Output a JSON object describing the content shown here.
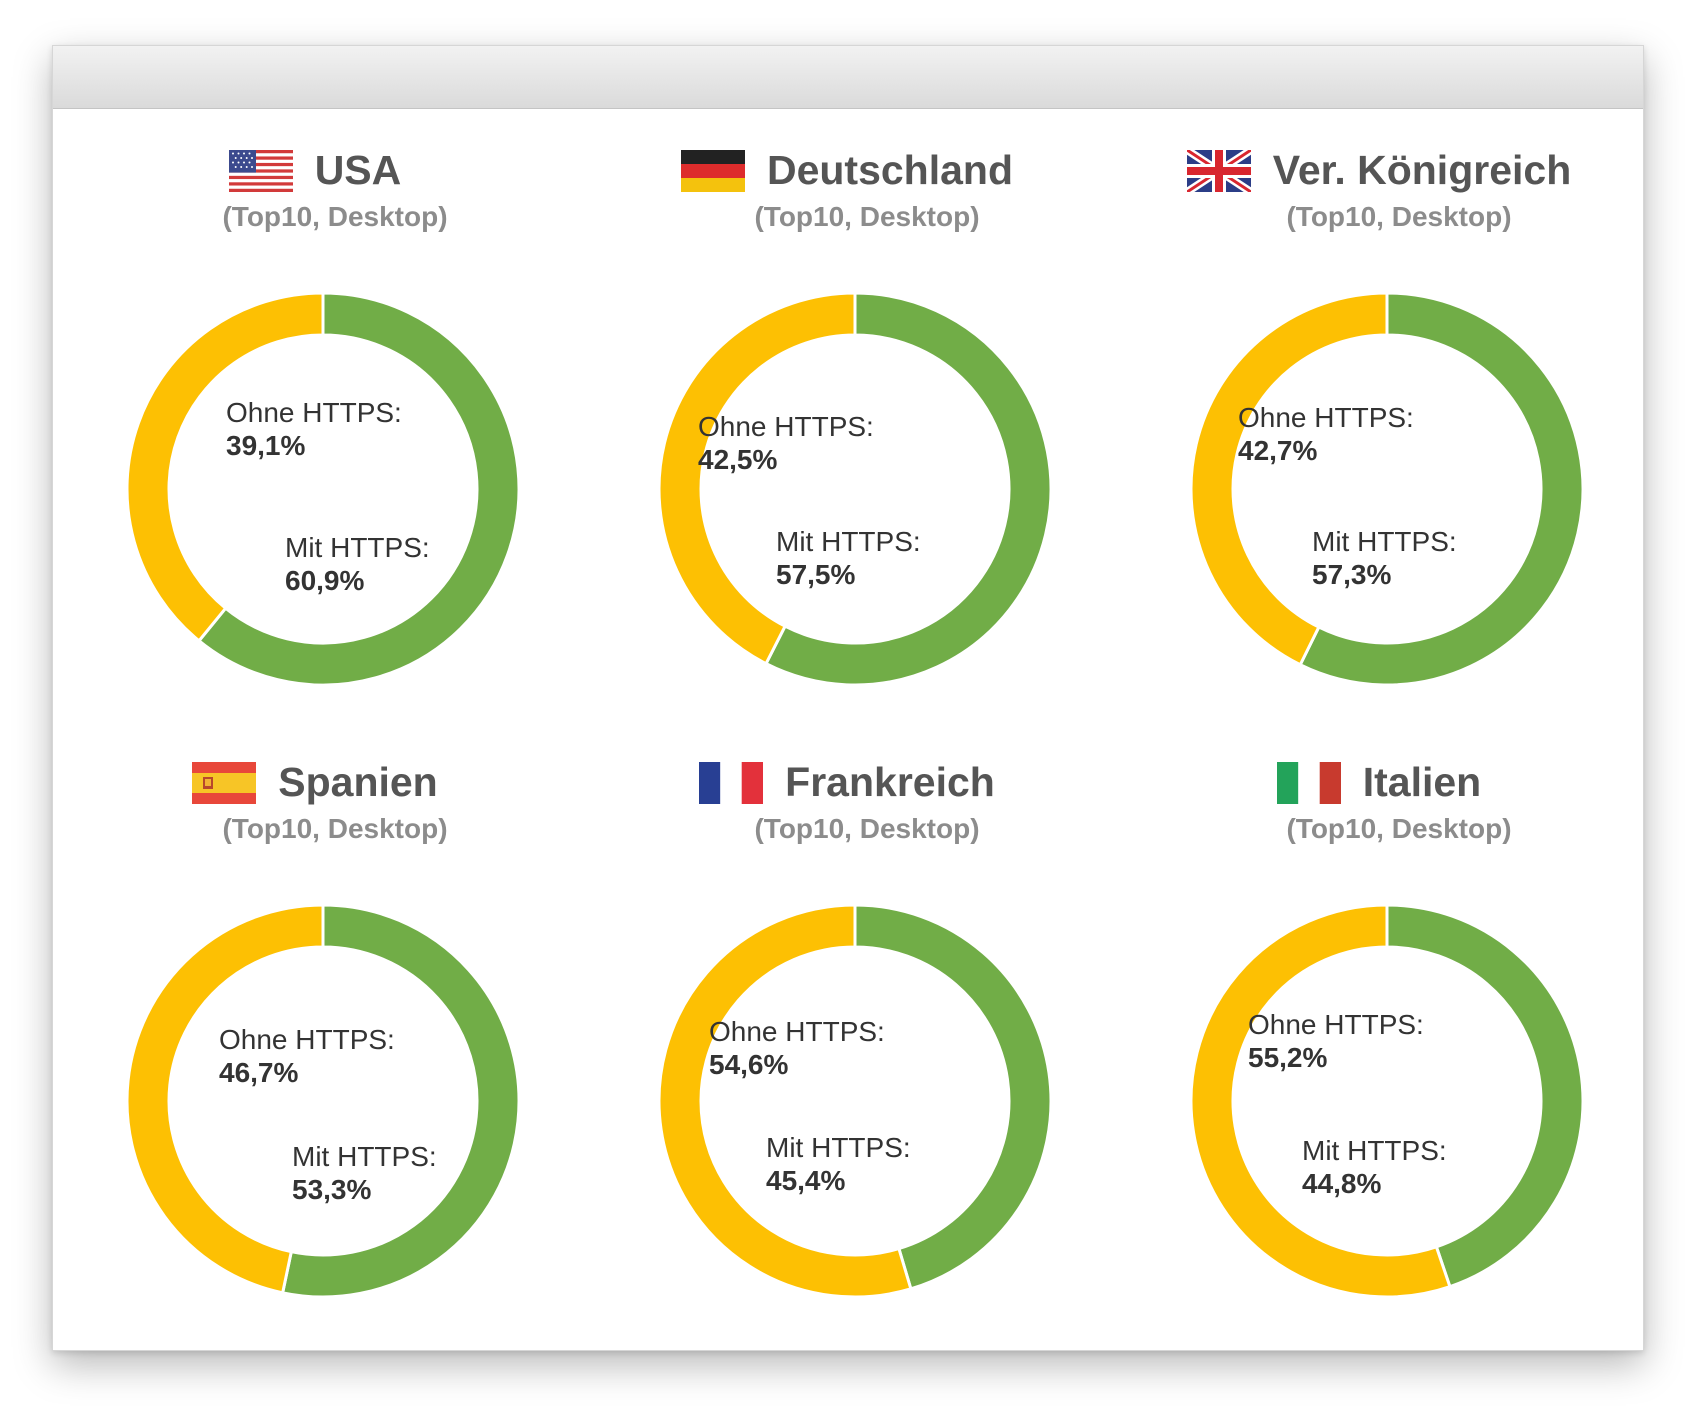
{
  "colors": {
    "mit_https": "#71ad47",
    "ohne_https": "#fdc003",
    "title_text": "#555555",
    "subtitle_text": "#8c8c8c"
  },
  "chart_data": [
    {
      "type": "pie",
      "title": "USA",
      "subtitle": "(Top10, Desktop)",
      "flag_icon": "usa-flag-icon",
      "slices": [
        {
          "label": "Mit HTTPS:",
          "display": "60,9%",
          "value": 60.9
        },
        {
          "label": "Ohne HTTPS:",
          "display": "39,1%",
          "value": 39.1
        }
      ]
    },
    {
      "type": "pie",
      "title": "Deutschland",
      "subtitle": "(Top10, Desktop)",
      "flag_icon": "germany-flag-icon",
      "slices": [
        {
          "label": "Mit HTTPS:",
          "display": "57,5%",
          "value": 57.5
        },
        {
          "label": "Ohne HTTPS:",
          "display": "42,5%",
          "value": 42.5
        }
      ]
    },
    {
      "type": "pie",
      "title": "Ver. Königreich",
      "subtitle": "(Top10, Desktop)",
      "flag_icon": "uk-flag-icon",
      "slices": [
        {
          "label": "Mit HTTPS:",
          "display": "57,3%",
          "value": 57.3
        },
        {
          "label": "Ohne HTTPS:",
          "display": "42,7%",
          "value": 42.7
        }
      ]
    },
    {
      "type": "pie",
      "title": "Spanien",
      "subtitle": "(Top10, Desktop)",
      "flag_icon": "spain-flag-icon",
      "slices": [
        {
          "label": "Mit HTTPS:",
          "display": "53,3%",
          "value": 53.3
        },
        {
          "label": "Ohne HTTPS:",
          "display": "46,7%",
          "value": 46.7
        }
      ]
    },
    {
      "type": "pie",
      "title": "Frankreich",
      "subtitle": "(Top10, Desktop)",
      "flag_icon": "france-flag-icon",
      "slices": [
        {
          "label": "Mit HTTPS:",
          "display": "45,4%",
          "value": 45.4
        },
        {
          "label": "Ohne HTTPS:",
          "display": "54,6%",
          "value": 54.6
        }
      ]
    },
    {
      "type": "pie",
      "title": "Italien",
      "subtitle": "(Top10, Desktop)",
      "flag_icon": "italy-flag-icon",
      "slices": [
        {
          "label": "Mit HTTPS:",
          "display": "44,8%",
          "value": 44.8
        },
        {
          "label": "Ohne HTTPS:",
          "display": "55,2%",
          "value": 55.2
        }
      ]
    }
  ]
}
